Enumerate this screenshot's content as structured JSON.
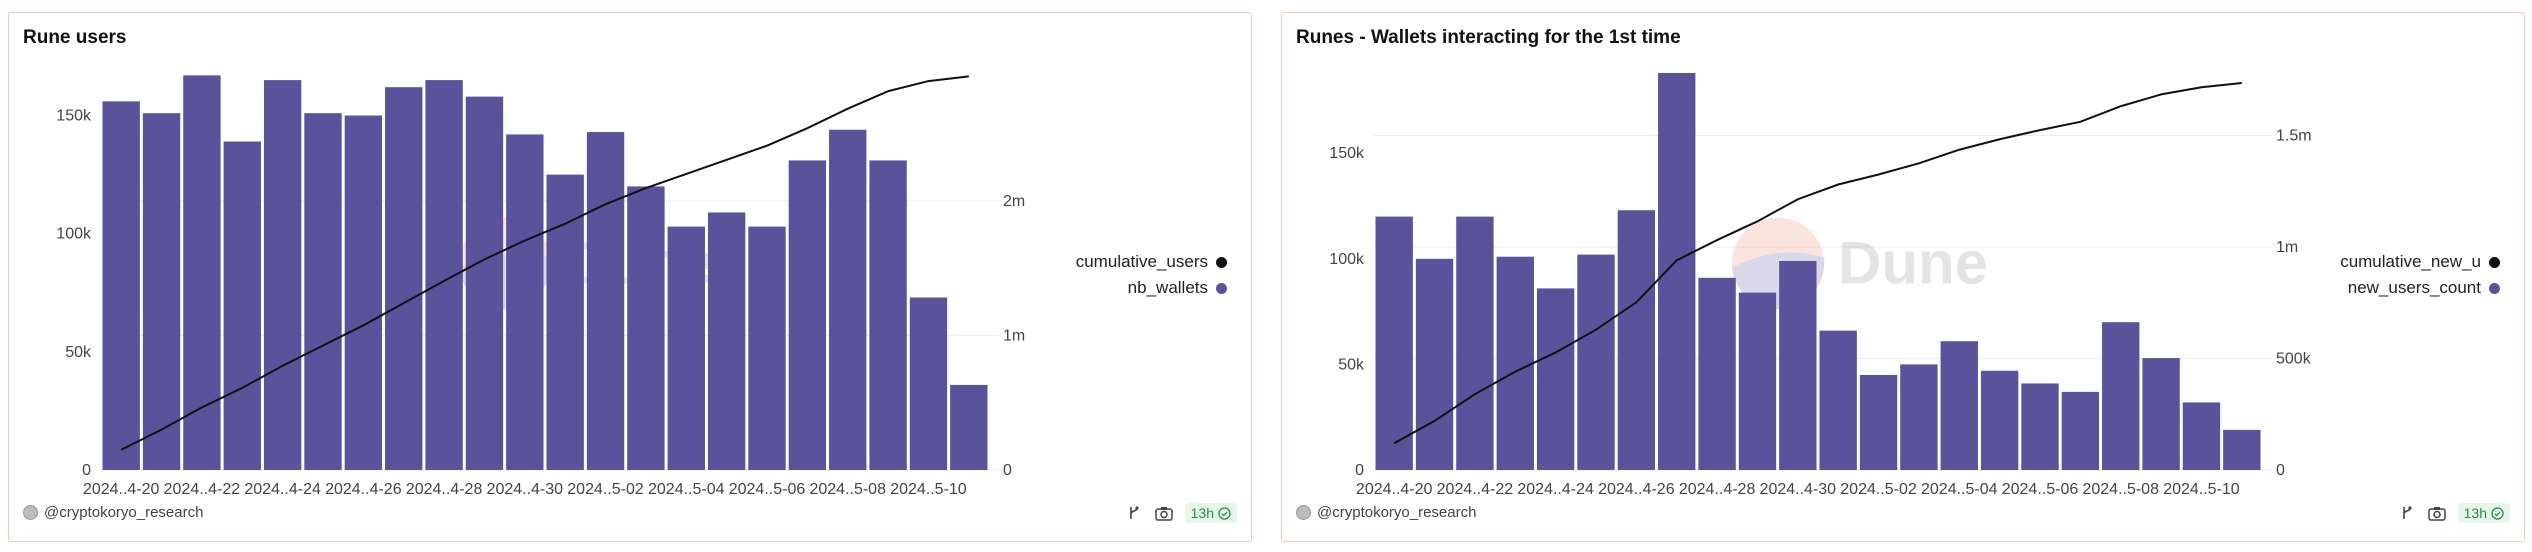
{
  "colors": {
    "bar": "#5a529b",
    "line": "#111111",
    "border": "#f3c9bf",
    "grid": "#ececec"
  },
  "panels": [
    {
      "title": "Rune users",
      "author": "@cryptokoryo_research",
      "freshness": "13h",
      "watermark": "Dune",
      "legend": [
        {
          "label": "cumulative_users",
          "color": "#111111"
        },
        {
          "label": "nb_wallets",
          "color": "#5a529b"
        }
      ]
    },
    {
      "title": "Runes - Wallets interacting for the 1st time",
      "author": "@cryptokoryo_research",
      "freshness": "13h",
      "watermark": "Dune",
      "legend": [
        {
          "label": "cumulative_new_u",
          "color": "#111111"
        },
        {
          "label": "new_users_count",
          "color": "#5a529b"
        }
      ]
    }
  ],
  "chart_data": [
    {
      "type": "bar",
      "title": "Rune users",
      "x_tick_labels": [
        "2024..4-20",
        "2024..4-22",
        "2024..4-24",
        "2024..4-26",
        "2024..4-28",
        "2024..4-30",
        "2024..5-02",
        "2024..5-04",
        "2024..5-06",
        "2024..5-08",
        "2024..5-10"
      ],
      "left_axis": {
        "ticks": [
          0,
          50000,
          100000,
          150000
        ],
        "tick_labels": [
          "0",
          "50k",
          "100k",
          "150k"
        ],
        "ylim": [
          0,
          168000
        ]
      },
      "right_axis": {
        "ticks": [
          0,
          1000000,
          2000000
        ],
        "tick_labels": [
          "0",
          "1m",
          "2m"
        ],
        "ylim": [
          0,
          2950000
        ]
      },
      "series": [
        {
          "name": "nb_wallets",
          "type": "bar",
          "axis": "left",
          "values": [
            156000,
            151000,
            167000,
            139000,
            165000,
            151000,
            150000,
            162000,
            165000,
            158000,
            142000,
            125000,
            143000,
            120000,
            103000,
            109000,
            103000,
            131000,
            144000,
            131000,
            73000,
            36000
          ]
        },
        {
          "name": "cumulative_users",
          "type": "line",
          "axis": "right",
          "values": [
            150000,
            300000,
            465000,
            610000,
            775000,
            925000,
            1075000,
            1240000,
            1405000,
            1565000,
            1705000,
            1830000,
            1975000,
            2095000,
            2200000,
            2305000,
            2410000,
            2540000,
            2685000,
            2815000,
            2890000,
            2925000
          ]
        }
      ],
      "grid": true,
      "legend_position": "right"
    },
    {
      "type": "bar",
      "title": "Runes - Wallets interacting for the 1st time",
      "x_tick_labels": [
        "2024..4-20",
        "2024..4-22",
        "2024..4-24",
        "2024..4-26",
        "2024..4-28",
        "2024..4-30",
        "2024..5-02",
        "2024..5-04",
        "2024..5-06",
        "2024..5-08",
        "2024..5-10"
      ],
      "left_axis": {
        "ticks": [
          0,
          50000,
          100000,
          150000
        ],
        "tick_labels": [
          "0",
          "50k",
          "100k",
          "150k"
        ],
        "ylim": [
          0,
          188000
        ]
      },
      "right_axis": {
        "ticks": [
          0,
          500000,
          1000000,
          1500000
        ],
        "tick_labels": [
          "0",
          "500k",
          "1m",
          "1.5m"
        ],
        "ylim": [
          0,
          1780000
        ]
      },
      "series": [
        {
          "name": "new_users_count",
          "type": "bar",
          "axis": "left",
          "values": [
            120000,
            100000,
            120000,
            101000,
            86000,
            102000,
            123000,
            188000,
            91000,
            84000,
            99000,
            66000,
            45000,
            50000,
            61000,
            47000,
            41000,
            37000,
            70000,
            53000,
            32000,
            19000
          ]
        },
        {
          "name": "cumulative_new_u",
          "type": "line",
          "axis": "right",
          "values": [
            120000,
            220000,
            340000,
            441000,
            527000,
            629000,
            752000,
            940000,
            1031000,
            1115000,
            1214000,
            1280000,
            1325000,
            1375000,
            1436000,
            1483000,
            1524000,
            1561000,
            1631000,
            1684000,
            1716000,
            1735000
          ]
        }
      ],
      "grid": true,
      "legend_position": "right"
    }
  ]
}
